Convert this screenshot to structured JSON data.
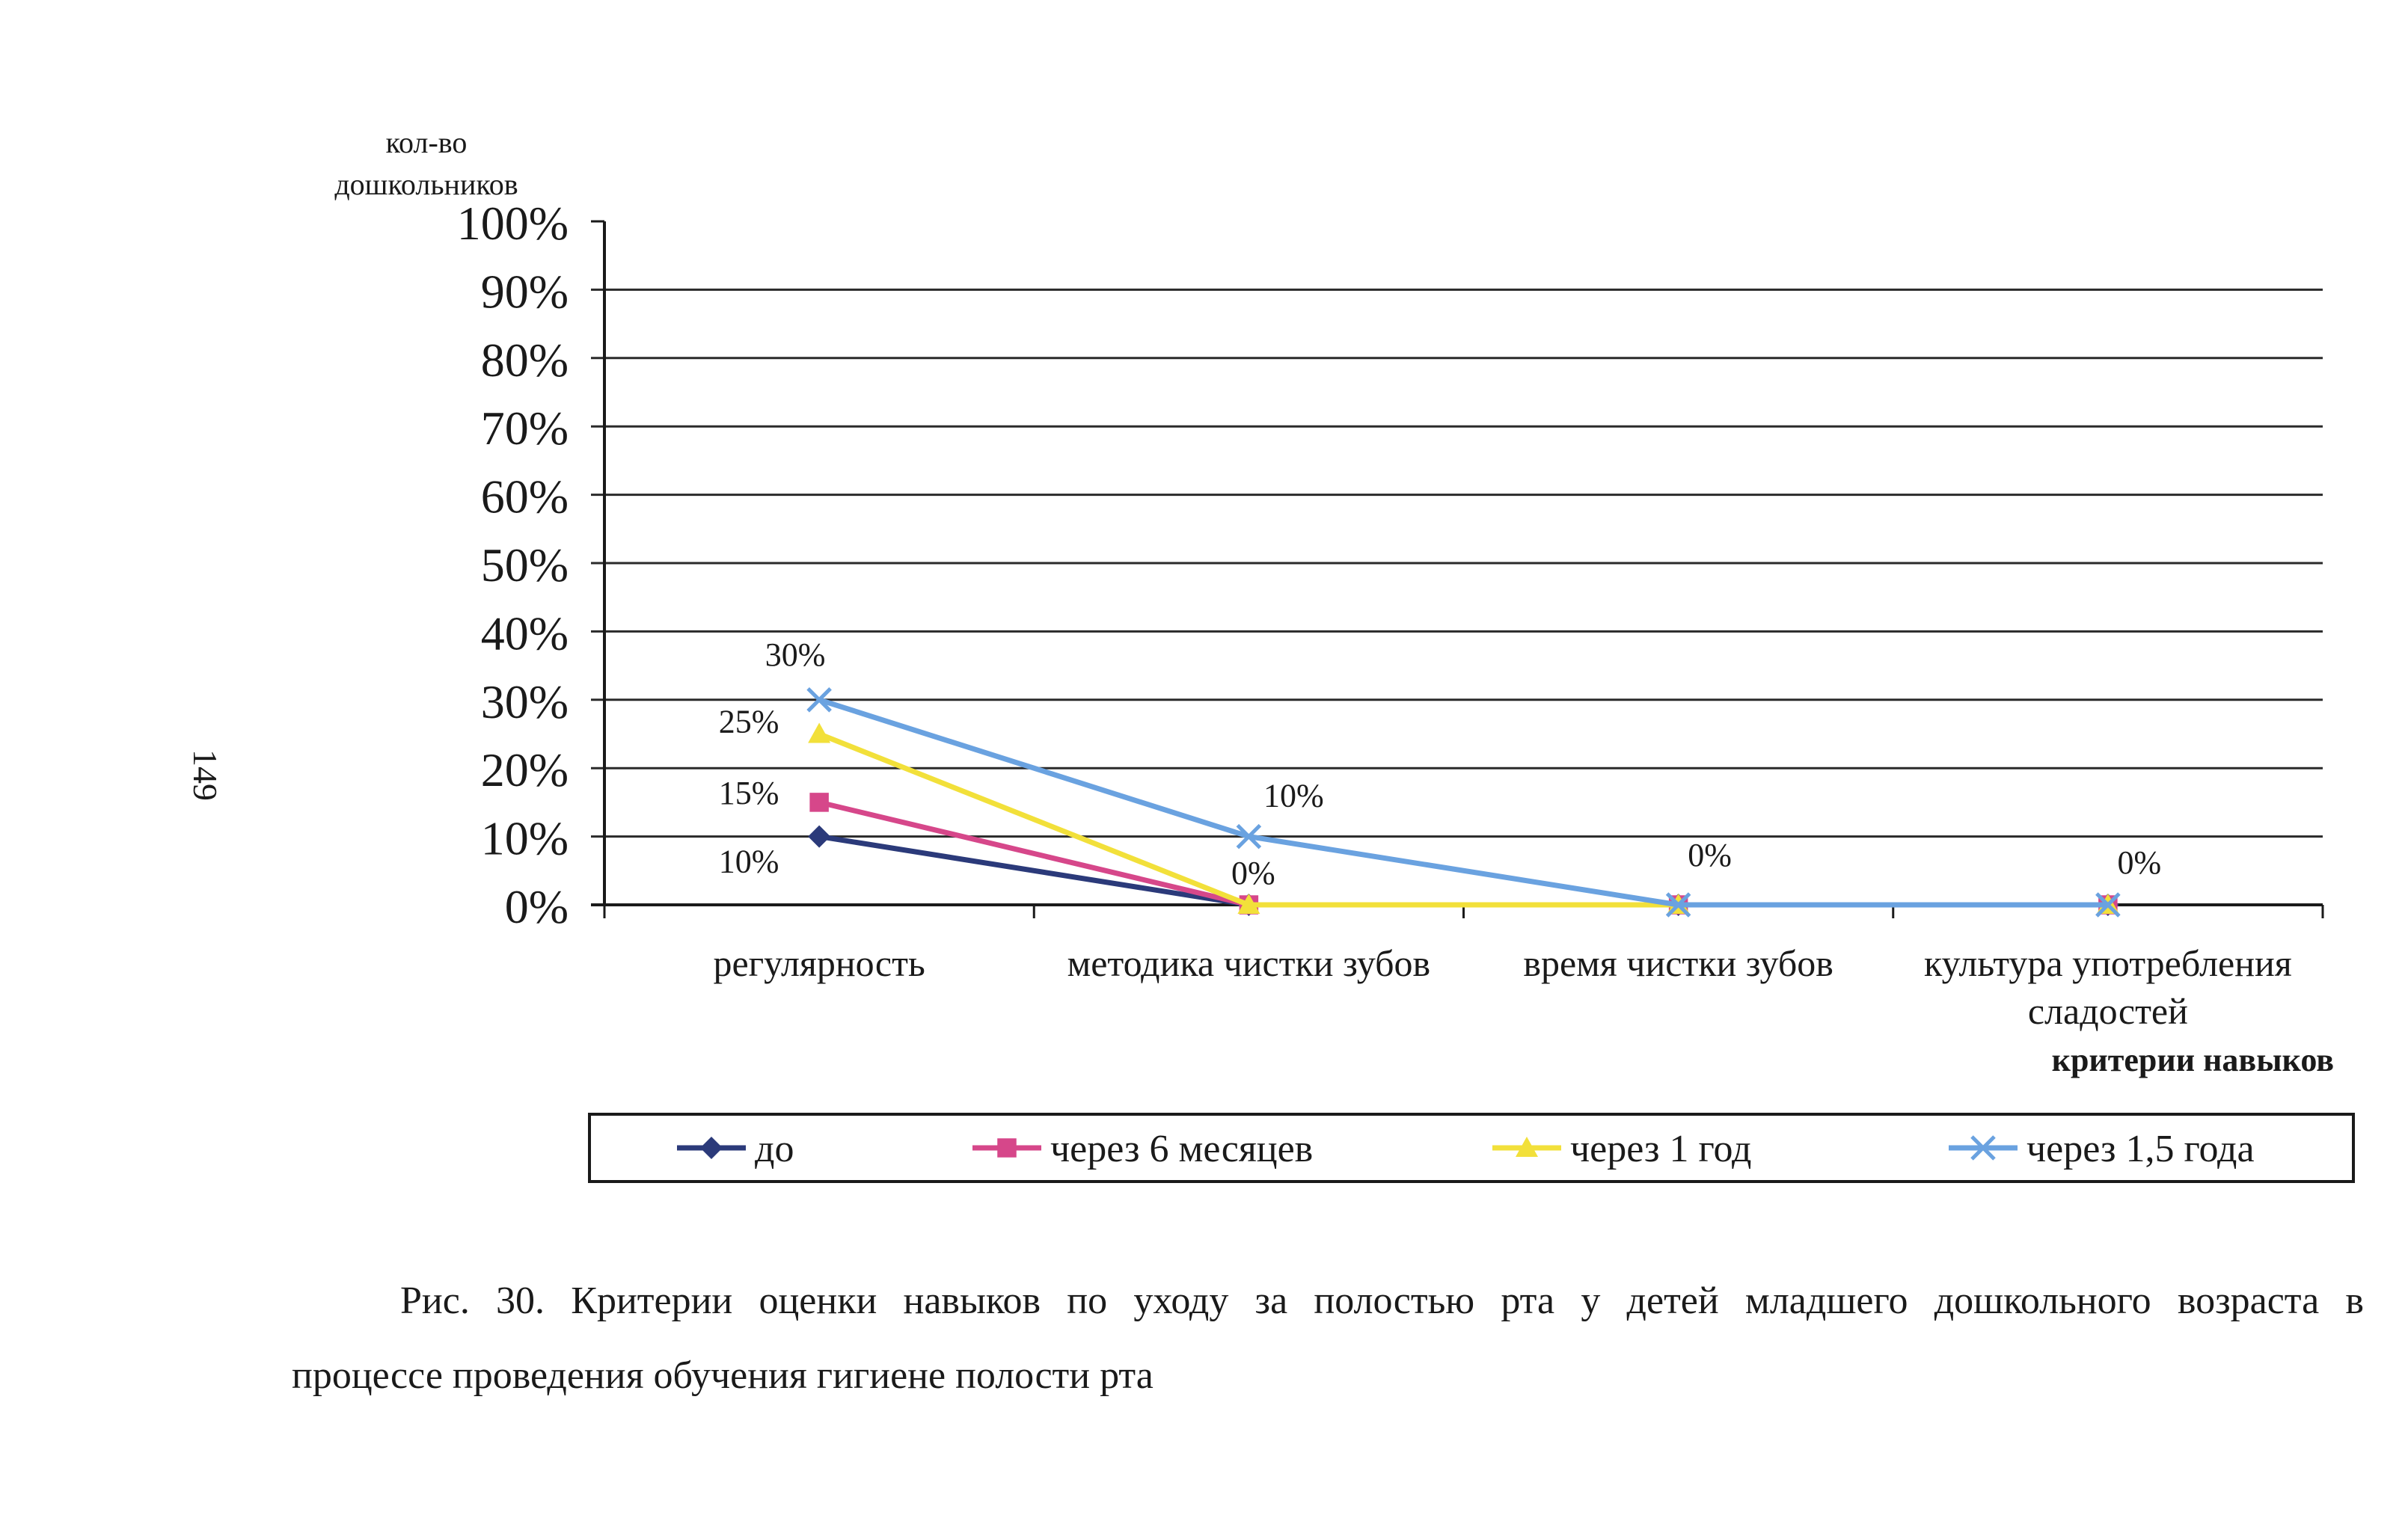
{
  "page_number": "149",
  "caption": {
    "line1": "Рис. 30. Критерии оценки навыков по уходу за полостью рта у детей младшего дошкольного возраста в",
    "line2": "процессе проведения обучения гигиене полости рта"
  },
  "chart_data": {
    "type": "line",
    "title": "",
    "ylabel": "кол-во\nдошкольников",
    "xlabel": "критерии навыков",
    "ylim": [
      0,
      100
    ],
    "yticks": [
      "0%",
      "10%",
      "20%",
      "30%",
      "40%",
      "50%",
      "60%",
      "70%",
      "80%",
      "90%",
      "100%"
    ],
    "grid": true,
    "legend_position": "bottom",
    "categories": [
      "регулярность",
      "методика чистки зубов",
      "время чистки зубов",
      "культура употребления\nсладостей"
    ],
    "series": [
      {
        "name": "до",
        "values": [
          10,
          0,
          0,
          0
        ],
        "color": "#2b3a7a",
        "marker": "diamond"
      },
      {
        "name": "через 6 месяцев",
        "values": [
          15,
          0,
          0,
          0
        ],
        "color": "#d6478a",
        "marker": "square"
      },
      {
        "name": "через 1 год",
        "values": [
          25,
          0,
          0,
          0
        ],
        "color": "#f2e03a",
        "marker": "triangle"
      },
      {
        "name": "через 1,5 года",
        "values": [
          30,
          10,
          0,
          0
        ],
        "color": "#6aa2e0",
        "marker": "x"
      }
    ],
    "data_labels": [
      {
        "category": 0,
        "value": 30,
        "text": "30%"
      },
      {
        "category": 0,
        "value": 25,
        "text": "25%"
      },
      {
        "category": 0,
        "value": 15,
        "text": "15%"
      },
      {
        "category": 0,
        "value": 10,
        "text": "10%"
      },
      {
        "category": 1,
        "value": 10,
        "text": "10%"
      },
      {
        "category": 1,
        "value": 0,
        "text": "0%"
      },
      {
        "category": 2,
        "value": 0,
        "text": "0%"
      },
      {
        "category": 3,
        "value": 0,
        "text": "0%"
      }
    ]
  }
}
